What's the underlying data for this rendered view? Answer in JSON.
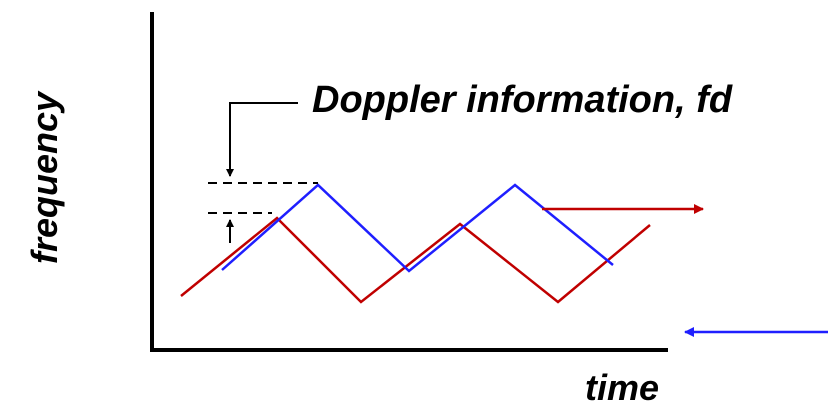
{
  "labels": {
    "y_axis": "frequency",
    "x_axis": "time",
    "annotation": "Doppler information, fd"
  },
  "colors": {
    "axis": "#000000",
    "transmitted": "#c00000",
    "received": "#1f1fff",
    "dashes": "#000000"
  }
}
